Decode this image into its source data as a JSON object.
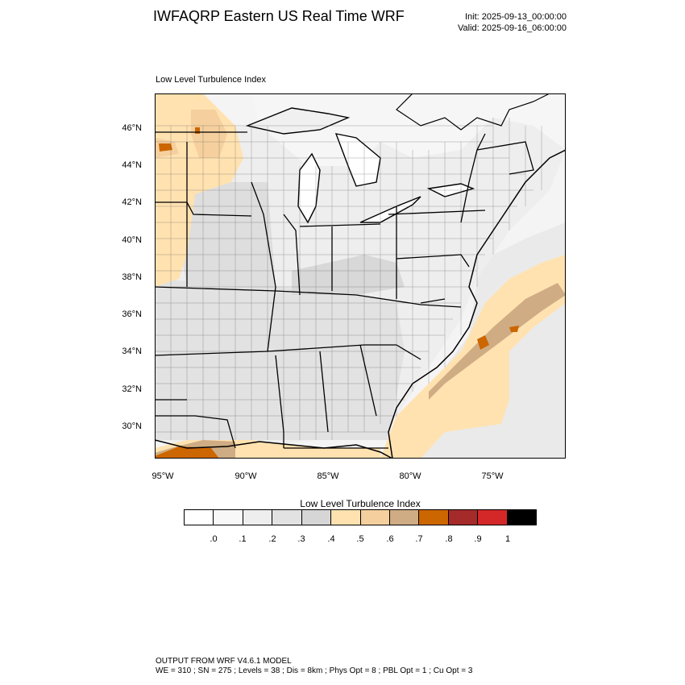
{
  "header": {
    "title": "IWFAQRP Eastern US Real Time WRF",
    "init": "Init: 2025-09-13_00:00:00",
    "valid": "Valid: 2025-09-16_06:00:00"
  },
  "plot": {
    "label": "Low Level Turbulence Index",
    "lat_labels": [
      "46°N",
      "44°N",
      "42°N",
      "40°N",
      "38°N",
      "36°N",
      "34°N",
      "32°N",
      "30°N"
    ],
    "lon_labels": [
      "95°W",
      "90°W",
      "85°W",
      "80°W",
      "75°W"
    ]
  },
  "colorbar": {
    "title": "Low Level Turbulence Index",
    "colors": [
      "#ffffff",
      "#f8f8f8",
      "#eeeeee",
      "#e2e2e2",
      "#d6d6d6",
      "#ffe2b0",
      "#f5d09e",
      "#cfac84",
      "#cc6600",
      "#a52a2a",
      "#d42828",
      "#000000"
    ],
    "ticks": [
      ".0",
      ".1",
      ".2",
      ".3",
      ".4",
      ".5",
      ".6",
      ".7",
      ".8",
      ".9",
      "1"
    ]
  },
  "footer": {
    "line1": "OUTPUT FROM WRF V4.6.1 MODEL",
    "line2": "WE = 310 ; SN = 275 ; Levels = 38 ; Dis = 8km ; Phys Opt = 8 ; PBL Opt = 1 ; Cu Opt = 3"
  }
}
